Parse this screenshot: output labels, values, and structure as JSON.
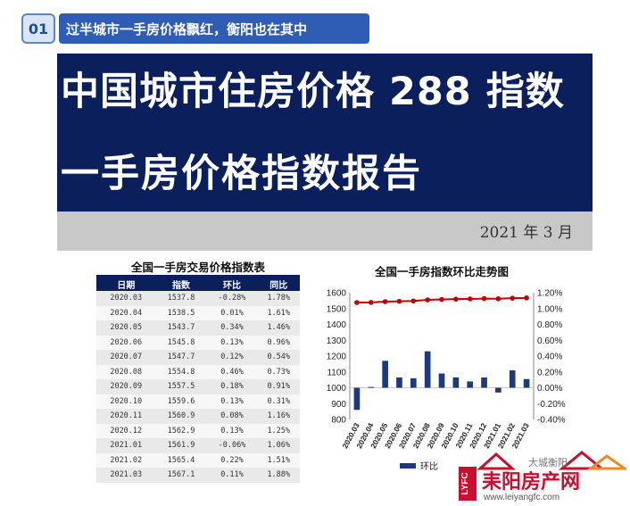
{
  "badge": {
    "number": "01",
    "text": "过半城市一手房价格飘红，衡阳也在其中"
  },
  "banner": {
    "line1": "中国城市住房价格 288 指数",
    "line2": "一手房价格指数报告"
  },
  "date": "2021 年 3 月",
  "table": {
    "title": "全国一手房交易价格指数表",
    "headers": [
      "日期",
      "指数",
      "环比",
      "同比"
    ],
    "rows": [
      [
        "2020.03",
        "1537.8",
        "-0.28%",
        "1.78%"
      ],
      [
        "2020.04",
        "1538.5",
        "0.01%",
        "1.61%"
      ],
      [
        "2020.05",
        "1543.7",
        "0.34%",
        "1.46%"
      ],
      [
        "2020.06",
        "1545.8",
        "0.13%",
        "0.96%"
      ],
      [
        "2020.07",
        "1547.7",
        "0.12%",
        "0.54%"
      ],
      [
        "2020.08",
        "1554.8",
        "0.46%",
        "0.73%"
      ],
      [
        "2020.09",
        "1557.5",
        "0.18%",
        "0.91%"
      ],
      [
        "2020.10",
        "1559.6",
        "0.13%",
        "0.31%"
      ],
      [
        "2020.11",
        "1560.9",
        "0.08%",
        "1.16%"
      ],
      [
        "2020.12",
        "1562.9",
        "0.13%",
        "1.25%"
      ],
      [
        "2021.01",
        "1561.9",
        "-0.06%",
        "1.06%"
      ],
      [
        "2021.02",
        "1565.4",
        "0.22%",
        "1.51%"
      ],
      [
        "2021.03",
        "1567.1",
        "0.11%",
        "1.88%"
      ]
    ]
  },
  "chart_data": {
    "type": "bar",
    "title": "全国一手房指数环比走势图",
    "categories": [
      "2020.03",
      "2020.04",
      "2020.05",
      "2020.06",
      "2020.07",
      "2020.08",
      "2020.09",
      "2020.10",
      "2020.11",
      "2020.12",
      "2021.01",
      "2021.02",
      "2021.03"
    ],
    "series": [
      {
        "name": "环比",
        "type": "bar",
        "axis": "right",
        "color": "#1f3a7a",
        "values": [
          -0.28,
          0.01,
          0.34,
          0.13,
          0.12,
          0.46,
          0.18,
          0.13,
          0.08,
          0.13,
          -0.06,
          0.22,
          0.11
        ]
      },
      {
        "type": "line",
        "axis": "left",
        "color": "#c00000",
        "values": [
          1537.8,
          1538.5,
          1543.7,
          1545.8,
          1547.7,
          1554.8,
          1557.5,
          1559.6,
          1560.9,
          1562.9,
          1561.9,
          1565.4,
          1567.1
        ]
      }
    ],
    "ylim_left": [
      800,
      1600
    ],
    "yticks_left": [
      "1600",
      "1500",
      "1400",
      "1300",
      "1200",
      "1100",
      "1000",
      "900",
      "800"
    ],
    "ylim_right": [
      -0.4,
      1.2
    ],
    "yticks_right": [
      "1.20%",
      "1.00%",
      "0.80%",
      "0.60%",
      "0.40%",
      "0.20%",
      "0.00%",
      "-0.20%",
      "-0.40%"
    ],
    "legend": "bottom"
  },
  "watermark": {
    "text": "大城衡阳"
  },
  "logo": {
    "brand": "耒阳房产网",
    "url": "www.leiyangfc.com",
    "mark": "LYFC"
  }
}
